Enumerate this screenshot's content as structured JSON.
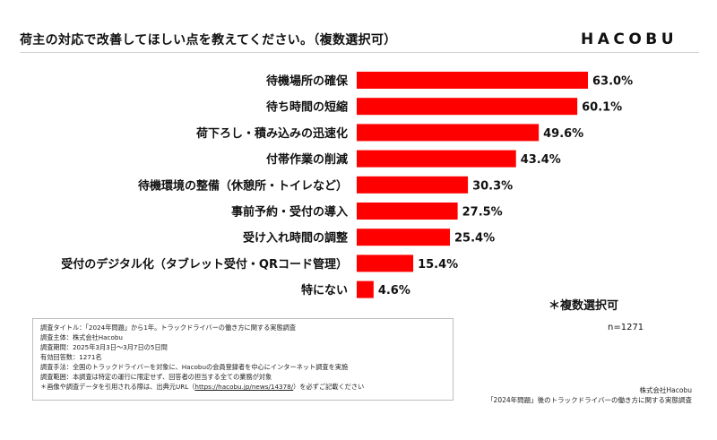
{
  "header": {
    "title": "荷主の対応で改善してほしい点を教えてください。（複数選択可）",
    "logo": "HACOBU"
  },
  "chart_data": {
    "type": "bar",
    "orientation": "horizontal",
    "categories": [
      "待機場所の確保",
      "待ち時間の短縮",
      "荷下ろし・積み込みの迅速化",
      "付帯作業の削減",
      "待機環境の整備（休憩所・トイレなど）",
      "事前予約・受付の導入",
      "受け入れ時間の調整",
      "受付のデジタル化（タブレット受付・QRコード管理）",
      "特にない"
    ],
    "values": [
      63.0,
      60.1,
      49.6,
      43.4,
      30.3,
      27.5,
      25.4,
      15.4,
      4.6
    ],
    "value_labels": [
      "63.0%",
      "60.1%",
      "49.6%",
      "43.4%",
      "30.3%",
      "27.5%",
      "25.4%",
      "15.4%",
      "4.6%"
    ],
    "xlim": [
      0,
      63.0
    ],
    "bar_color": "#ff0000",
    "grid": false,
    "legend": "none"
  },
  "notes": {
    "multi_select": "＊複数選択可",
    "n": "n=1271"
  },
  "survey": {
    "lines": [
      "調査タイトル：「2024年問題」から1年。トラックドライバーの働き方に関する実態調査",
      "調査主体：株式会社Hacobu",
      "調査期間：2025年3月3日～3月7日の5日間",
      "有効回答数：1271名",
      "調査手法：全国のトラックドライバーを対象に、Hacobuの会員登録者を中心にインターネット調査を実施",
      "調査範囲：本調査は特定の運行に限定せず、回答者の担当する全ての業務が対象"
    ],
    "citation_prefix": "＊画像や調査データを引用される際は、出典元URL（",
    "citation_url": "https://hacobu.jp/news/14378/",
    "citation_suffix": "）を必ずご記載ください"
  },
  "footer": {
    "company": "株式会社Hacobu",
    "report": "「2024年問題」後のトラックドライバーの働き方に関する実態調査"
  }
}
